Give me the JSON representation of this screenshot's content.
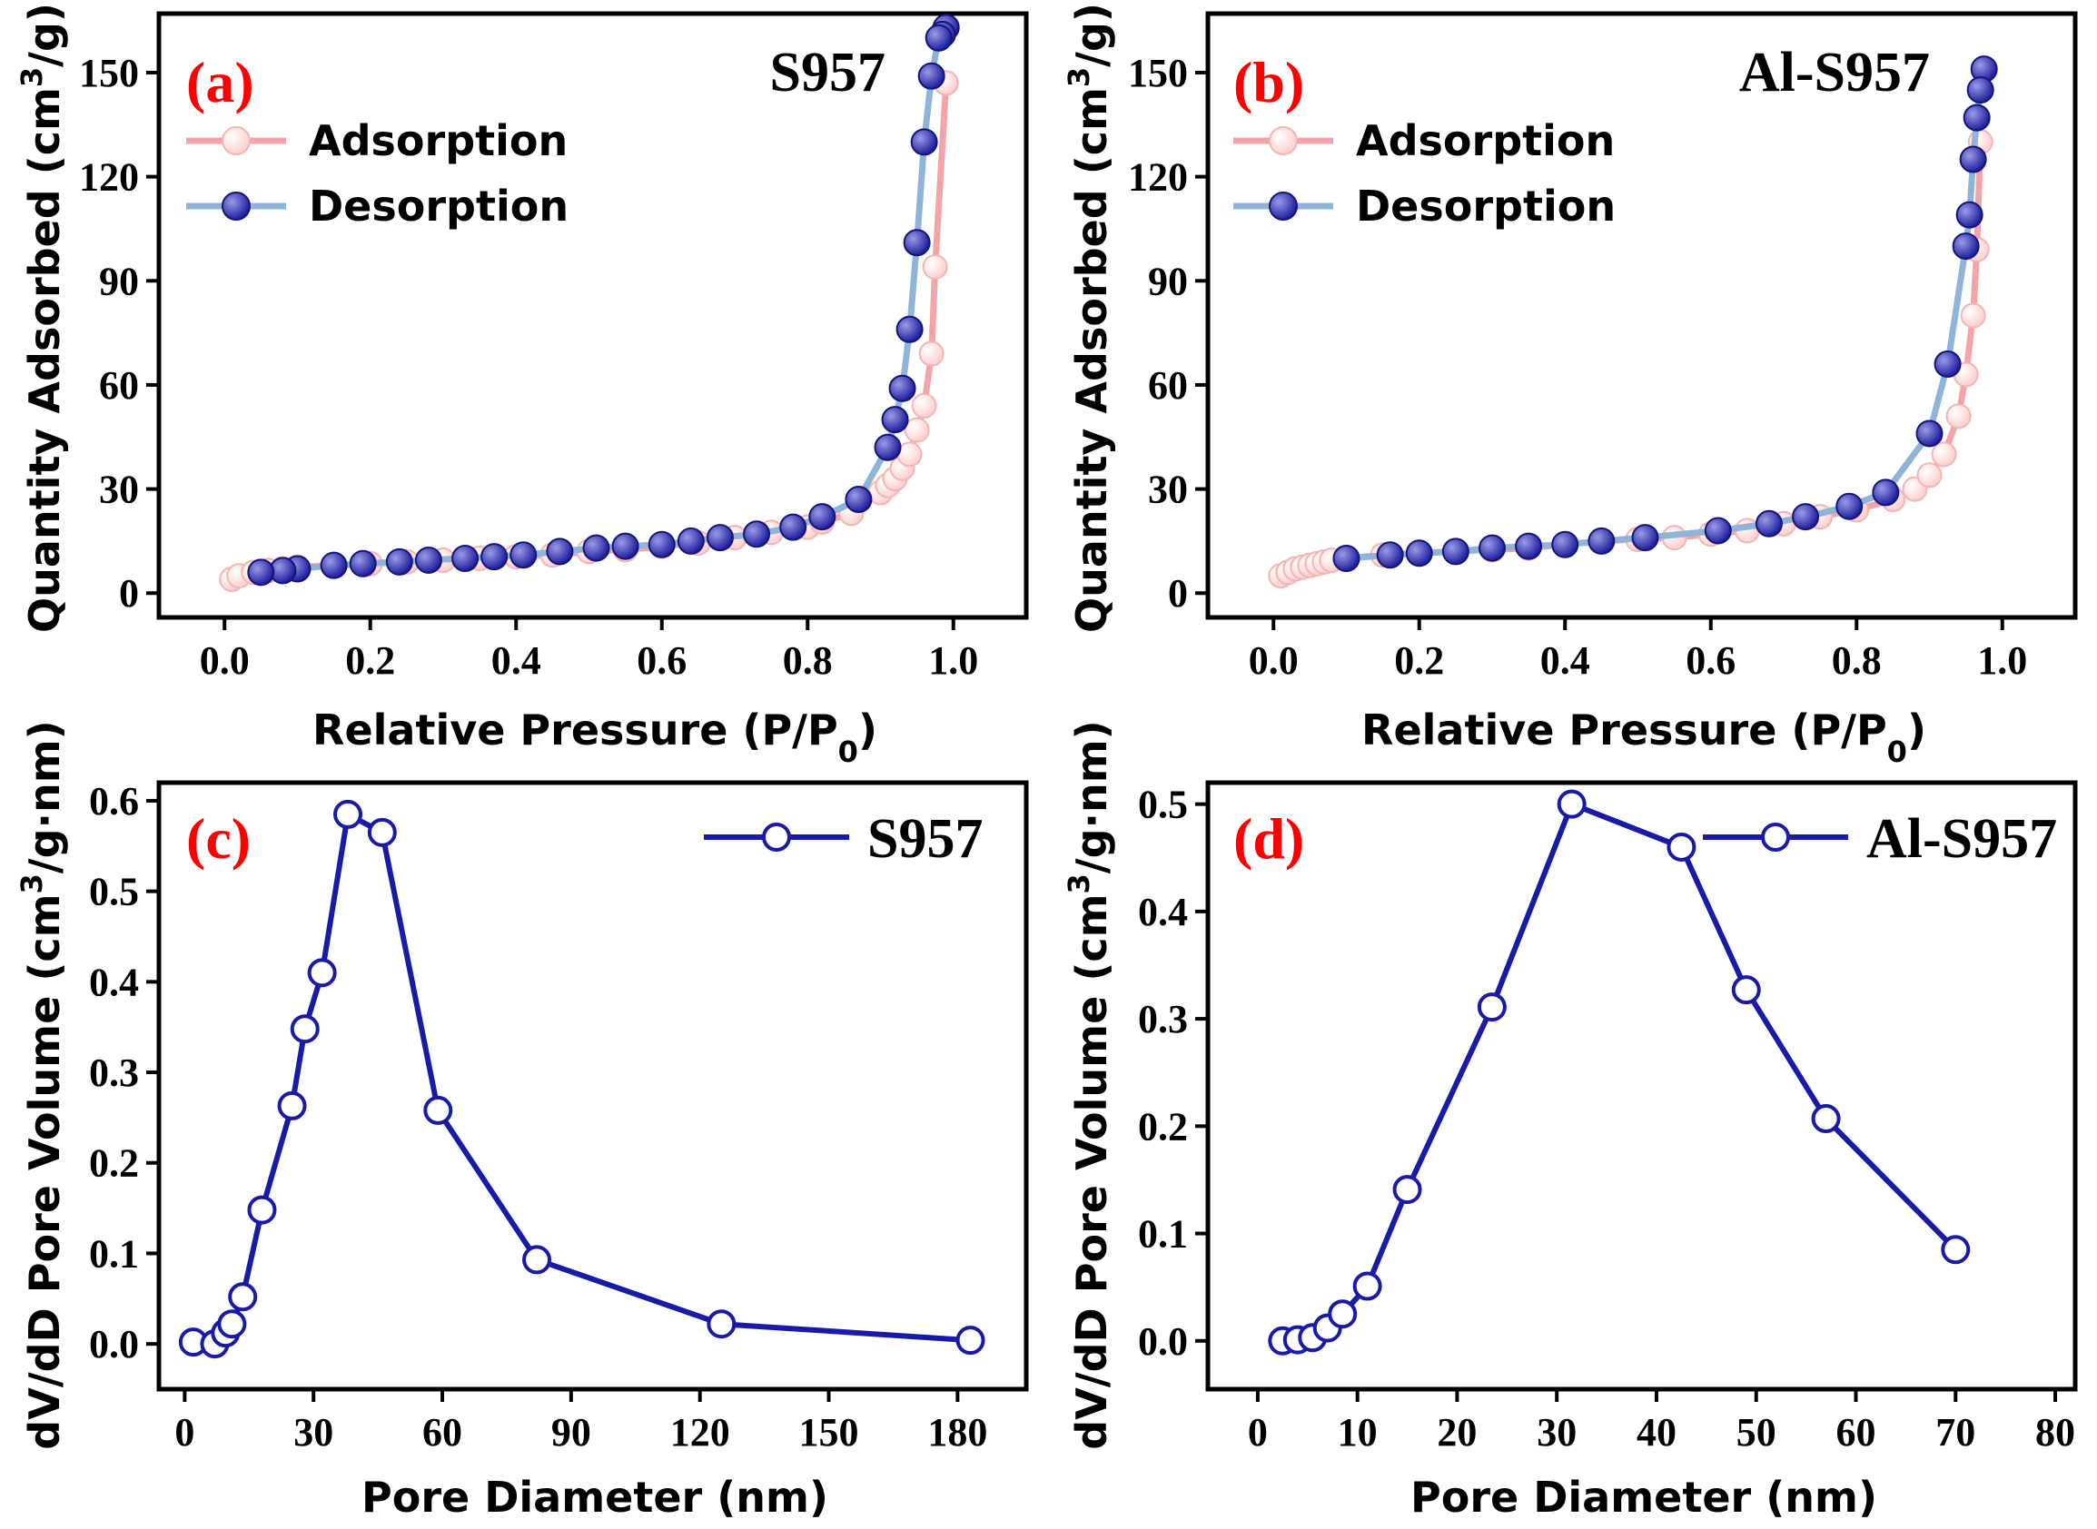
{
  "colors": {
    "label_red": "#ff0000",
    "adsorption_line": "#f4a3a8",
    "adsorption_marker": "#fbcfcf",
    "desorption_line": "#8fb4d8",
    "desorption_marker": "#1f1f9e",
    "psd_line": "#1a1aa8"
  },
  "chart_data": [
    {
      "type": "line",
      "panel_label": "(a)",
      "title": "S957",
      "xlabel": "Relative Pressure (P/P",
      "xlabel_sub": "0",
      "xlabel_end": ")",
      "ylabel": "Quantity Adsorbed (cm",
      "ylabel_sup": "3",
      "ylabel_end": "/g)",
      "xlim": [
        -0.09,
        1.1
      ],
      "ylim": [
        -7,
        167
      ],
      "xticks": [
        "0.0",
        "0.2",
        "0.4",
        "0.6",
        "0.8",
        "1.0"
      ],
      "xtick_values": [
        0,
        0.2,
        0.4,
        0.6,
        0.8,
        1.0
      ],
      "yticks": [
        "0",
        "30",
        "60",
        "90",
        "120",
        "150"
      ],
      "ytick_values": [
        0,
        30,
        60,
        90,
        120,
        150
      ],
      "legend_position": "upper-left",
      "series": [
        {
          "name": "Adsorption",
          "style": "adsorption",
          "x": [
            0.01,
            0.02,
            0.04,
            0.06,
            0.08,
            0.1,
            0.15,
            0.2,
            0.25,
            0.3,
            0.35,
            0.4,
            0.45,
            0.5,
            0.55,
            0.6,
            0.65,
            0.7,
            0.75,
            0.8,
            0.82,
            0.86,
            0.9,
            0.91,
            0.92,
            0.93,
            0.94,
            0.95,
            0.96,
            0.97,
            0.975,
            0.99
          ],
          "y": [
            4,
            5,
            6,
            6.5,
            7,
            7.5,
            8,
            8.5,
            9,
            9.5,
            10,
            10.5,
            11,
            12,
            12.5,
            13.5,
            14.5,
            16,
            17.5,
            19,
            20.5,
            23,
            29,
            31,
            33,
            36,
            40,
            47,
            54,
            69,
            94,
            147
          ]
        },
        {
          "name": "Desorption",
          "style": "desorption",
          "x": [
            0.99,
            0.985,
            0.98,
            0.97,
            0.96,
            0.95,
            0.94,
            0.93,
            0.92,
            0.91,
            0.87,
            0.82,
            0.78,
            0.73,
            0.68,
            0.64,
            0.6,
            0.55,
            0.51,
            0.46,
            0.41,
            0.37,
            0.33,
            0.28,
            0.24,
            0.19,
            0.15,
            0.1,
            0.08,
            0.05
          ],
          "y": [
            163,
            161,
            160,
            149,
            130,
            101,
            76,
            59,
            50,
            42,
            27,
            22,
            19,
            17,
            16,
            15,
            14,
            13.5,
            13,
            12,
            11,
            10.5,
            10,
            9.5,
            9,
            8.5,
            8,
            7,
            6.5,
            6
          ]
        }
      ]
    },
    {
      "type": "line",
      "panel_label": "(b)",
      "title": "Al-S957",
      "xlabel": "Relative Pressure (P/P",
      "xlabel_sub": "0",
      "xlabel_end": ")",
      "ylabel": "Quantity Adsorbed (cm",
      "ylabel_sup": "3",
      "ylabel_end": "/g)",
      "xlim": [
        -0.09,
        1.1
      ],
      "ylim": [
        -7,
        167
      ],
      "xticks": [
        "0.0",
        "0.2",
        "0.4",
        "0.6",
        "0.8",
        "1.0"
      ],
      "xtick_values": [
        0,
        0.2,
        0.4,
        0.6,
        0.8,
        1.0
      ],
      "yticks": [
        "0",
        "30",
        "60",
        "90",
        "120",
        "150"
      ],
      "ytick_values": [
        0,
        30,
        60,
        90,
        120,
        150
      ],
      "legend_position": "upper-left",
      "series": [
        {
          "name": "Adsorption",
          "style": "adsorption",
          "x": [
            0.01,
            0.02,
            0.03,
            0.04,
            0.05,
            0.06,
            0.07,
            0.08,
            0.1,
            0.15,
            0.2,
            0.25,
            0.3,
            0.35,
            0.4,
            0.45,
            0.5,
            0.55,
            0.6,
            0.65,
            0.7,
            0.75,
            0.8,
            0.85,
            0.88,
            0.9,
            0.92,
            0.94,
            0.95,
            0.96,
            0.965,
            0.97
          ],
          "y": [
            5,
            6,
            7,
            7.5,
            8,
            8.5,
            9,
            9.5,
            10,
            11,
            11.5,
            12,
            12.5,
            13,
            14,
            15,
            15.5,
            16,
            17,
            18,
            20,
            22,
            24,
            27,
            30,
            34,
            40,
            51,
            63,
            80,
            99,
            130
          ]
        },
        {
          "name": "Desorption",
          "style": "desorption",
          "x": [
            0.975,
            0.97,
            0.965,
            0.96,
            0.955,
            0.95,
            0.925,
            0.9,
            0.84,
            0.79,
            0.73,
            0.68,
            0.61,
            0.51,
            0.45,
            0.4,
            0.35,
            0.3,
            0.25,
            0.2,
            0.16,
            0.1
          ],
          "y": [
            151,
            145,
            137,
            125,
            109,
            100,
            66,
            46,
            29,
            25,
            22,
            20,
            18,
            16,
            15,
            14,
            13.5,
            13,
            12,
            11.5,
            11,
            10
          ]
        }
      ]
    },
    {
      "type": "line",
      "panel_label": "(c)",
      "title": "S957",
      "xlabel": "Pore Diameter (nm)",
      "ylabel": "dV/dD Pore Volume (cm",
      "ylabel_sup": "3",
      "ylabel_end": "/g·nm)",
      "xlim": [
        -6,
        196
      ],
      "ylim": [
        -0.05,
        0.62
      ],
      "xticks": [
        "0",
        "30",
        "60",
        "90",
        "120",
        "150",
        "180"
      ],
      "xtick_values": [
        0,
        30,
        60,
        90,
        120,
        150,
        180
      ],
      "yticks": [
        "0.0",
        "0.1",
        "0.2",
        "0.3",
        "0.4",
        "0.5",
        "0.6"
      ],
      "ytick_values": [
        0,
        0.1,
        0.2,
        0.3,
        0.4,
        0.5,
        0.6
      ],
      "legend_position": "upper-right",
      "series": [
        {
          "name": "S957",
          "style": "psd",
          "x": [
            2,
            7,
            9.5,
            11,
            13.5,
            18,
            25,
            28,
            32,
            38,
            46,
            59,
            82,
            125,
            183
          ],
          "y": [
            0.002,
            0.0,
            0.012,
            0.022,
            0.052,
            0.148,
            0.263,
            0.348,
            0.41,
            0.585,
            0.565,
            0.258,
            0.093,
            0.022,
            0.004
          ]
        }
      ]
    },
    {
      "type": "line",
      "panel_label": "(d)",
      "title": "Al-S957",
      "xlabel": "Pore Diameter (nm)",
      "ylabel": "dV/dD Pore Volume (cm",
      "ylabel_sup": "3",
      "ylabel_end": "/g·nm)",
      "xlim": [
        -5,
        82
      ],
      "ylim": [
        -0.045,
        0.52
      ],
      "xticks": [
        "0",
        "10",
        "20",
        "30",
        "40",
        "50",
        "60",
        "70",
        "80"
      ],
      "xtick_values": [
        0,
        10,
        20,
        30,
        40,
        50,
        60,
        70,
        80
      ],
      "yticks": [
        "0.0",
        "0.1",
        "0.2",
        "0.3",
        "0.4",
        "0.5"
      ],
      "ytick_values": [
        0,
        0.1,
        0.2,
        0.3,
        0.4,
        0.5
      ],
      "legend_position": "upper-right",
      "series": [
        {
          "name": "Al-S957",
          "style": "psd",
          "x": [
            2.5,
            4,
            5.5,
            7,
            8.5,
            11,
            15,
            23.5,
            31.5,
            42.5,
            49,
            57,
            70
          ],
          "y": [
            0.0,
            0.001,
            0.003,
            0.012,
            0.025,
            0.051,
            0.141,
            0.311,
            0.5,
            0.46,
            0.327,
            0.207,
            0.085
          ]
        }
      ]
    }
  ]
}
